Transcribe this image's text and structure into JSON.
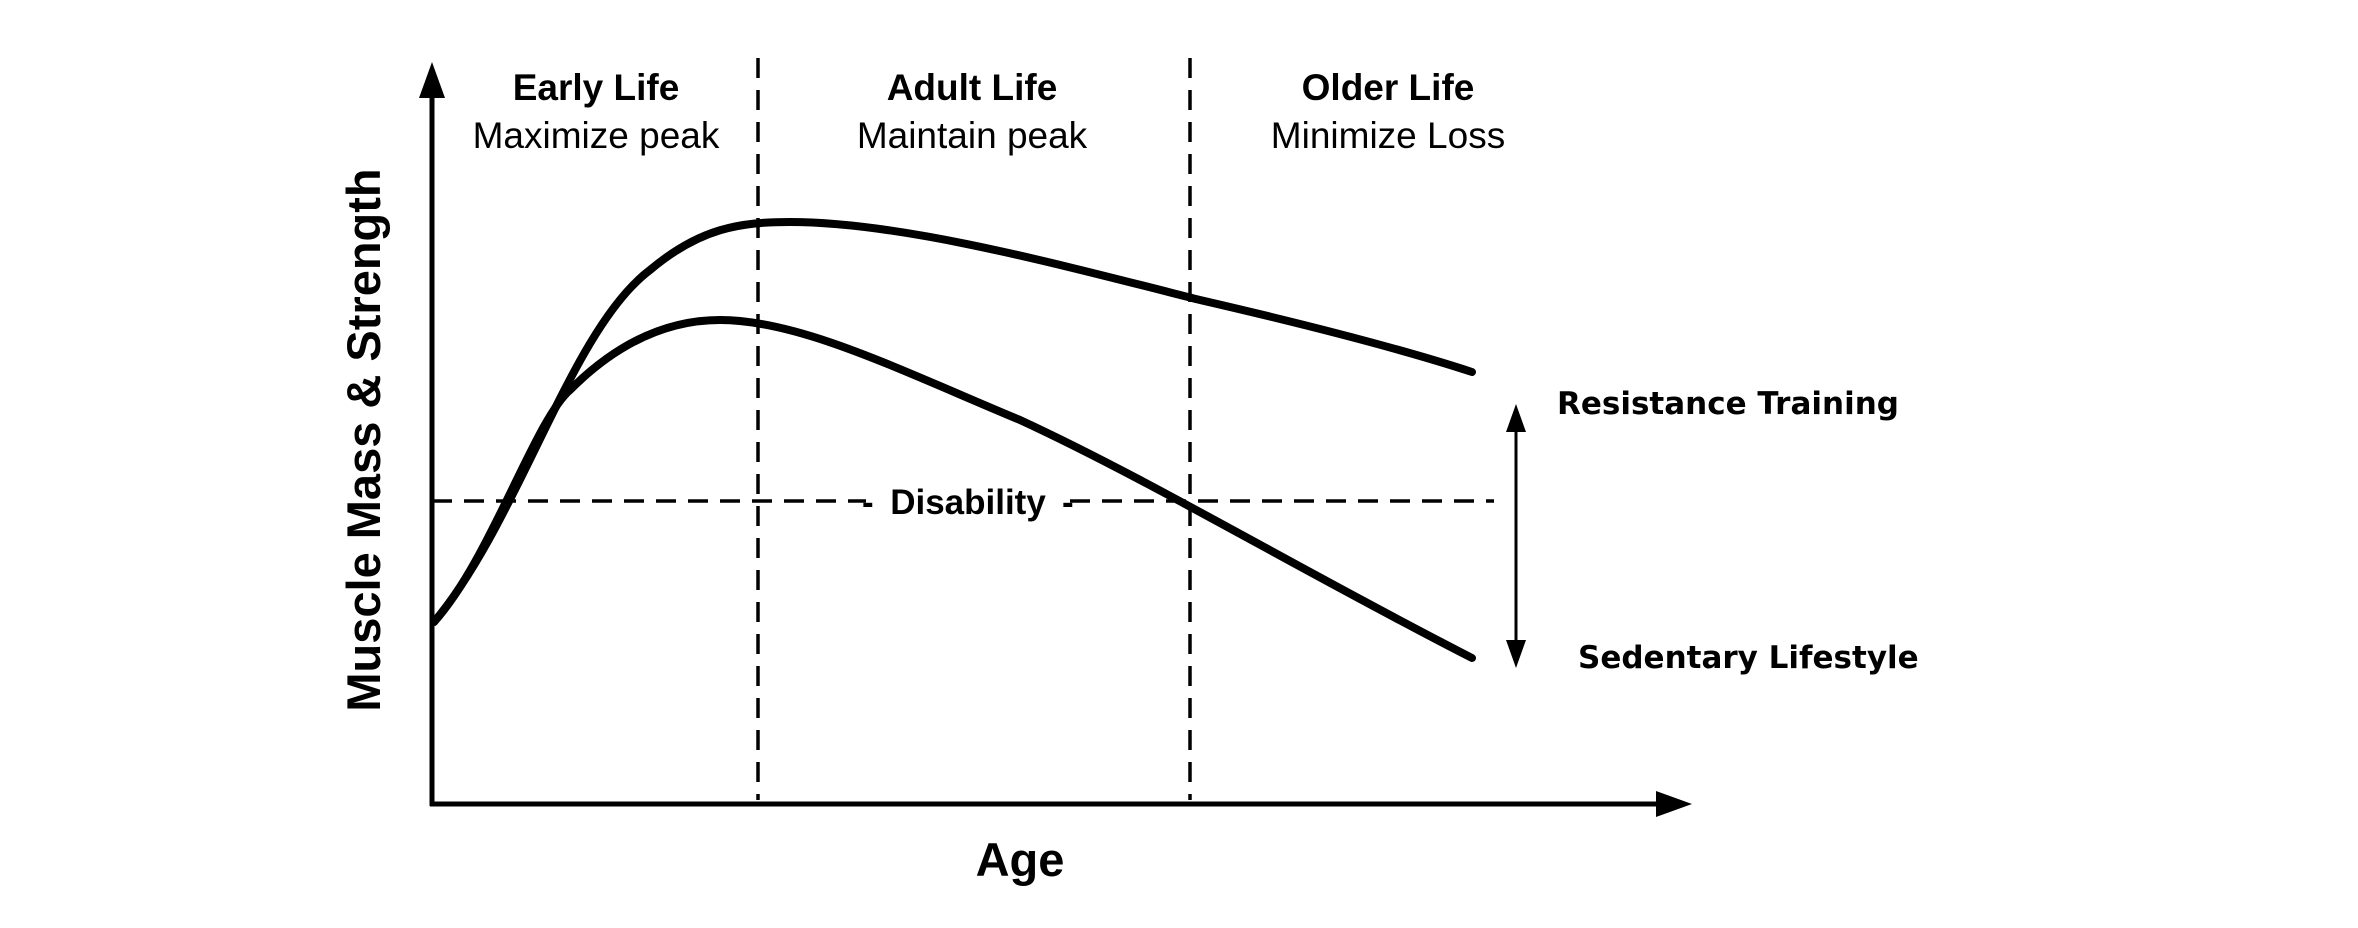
{
  "phases": [
    {
      "title": "Early Life",
      "subtitle": "Maximize peak"
    },
    {
      "title": "Adult Life",
      "subtitle": "Maintain peak"
    },
    {
      "title": "Older Life",
      "subtitle": "Minimize Loss"
    }
  ],
  "axes": {
    "x_label": "Age",
    "y_label": "Muscle Mass & Strength"
  },
  "threshold": {
    "label": "Disability"
  },
  "curves": {
    "upper": "Resistance Training",
    "lower": "Sedentary Lifestyle"
  }
}
